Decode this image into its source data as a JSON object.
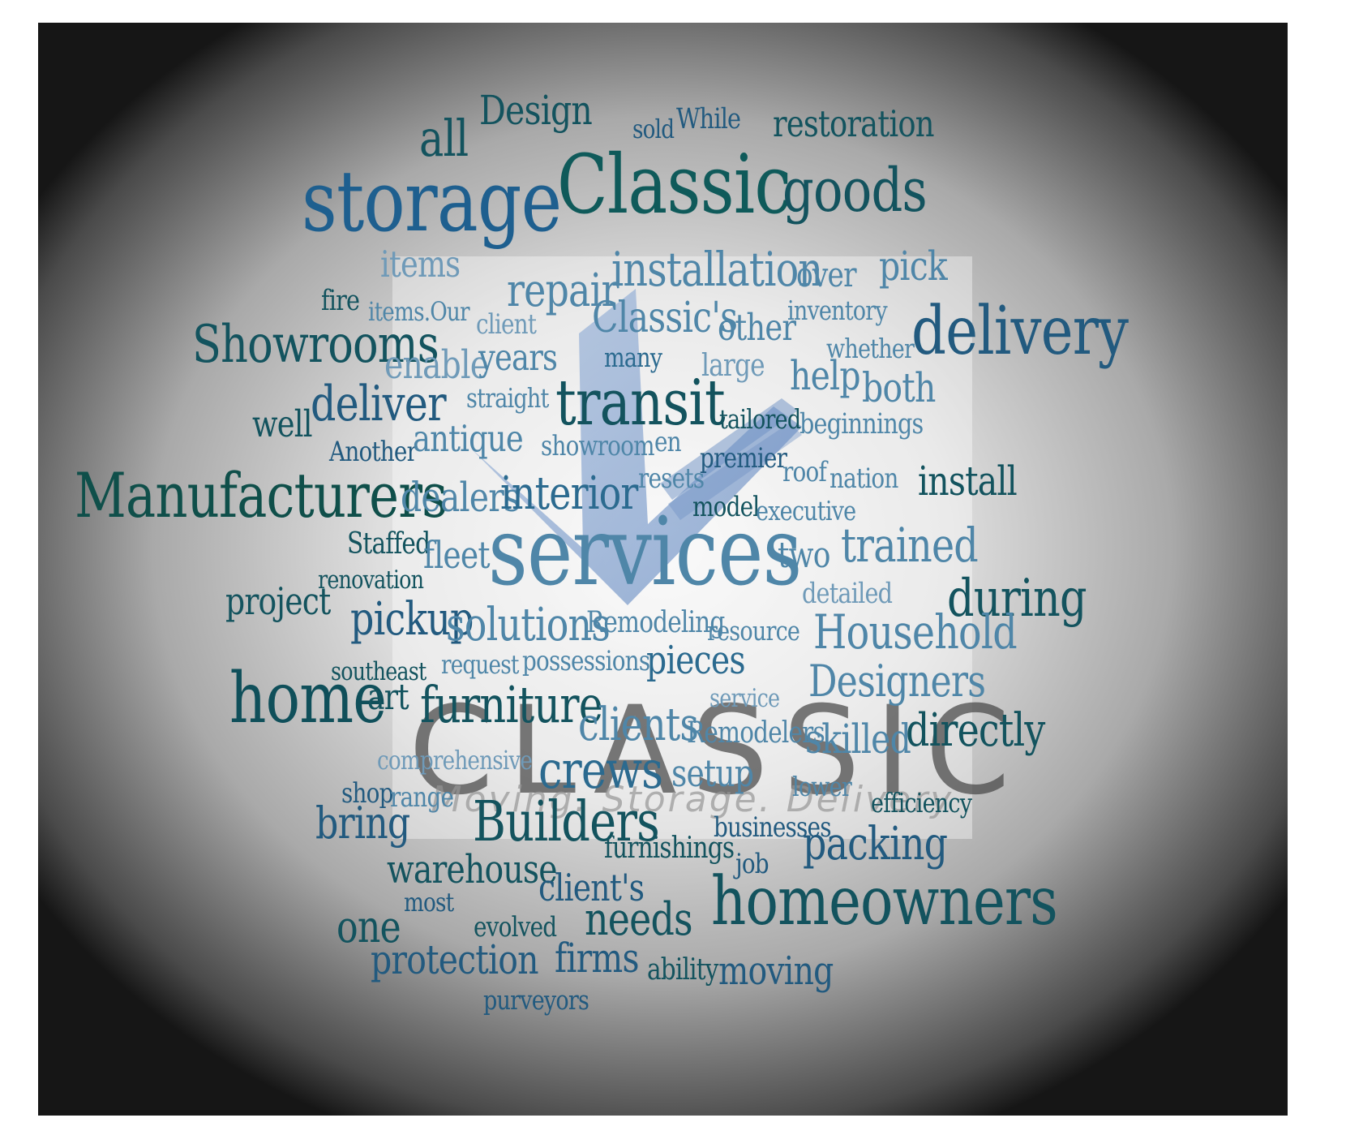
{
  "logo": {
    "name": "CLASSIC",
    "tagline": "Moving. Storage. Delivery"
  },
  "words": [
    {
      "text": "Design",
      "color": "#13535e"
    },
    {
      "text": "sold",
      "color": "#225a7f"
    },
    {
      "text": "While",
      "color": "#225a7f"
    },
    {
      "text": "restoration",
      "color": "#13535e"
    },
    {
      "text": "all",
      "color": "#13535e"
    },
    {
      "text": "storage",
      "color": "#1e5f8f"
    },
    {
      "text": "Classic",
      "color": "#0f5a5a"
    },
    {
      "text": "goods",
      "color": "#13535e"
    },
    {
      "text": "items",
      "color": "#6f9ab8"
    },
    {
      "text": "installation",
      "color": "#4f86a8"
    },
    {
      "text": "over",
      "color": "#4f86a8"
    },
    {
      "text": "pick",
      "color": "#4f86a8"
    },
    {
      "text": "fire",
      "color": "#13535e"
    },
    {
      "text": "items.Our",
      "color": "#4f86a8"
    },
    {
      "text": "repair",
      "color": "#4f86a8"
    },
    {
      "text": "client",
      "color": "#6f9ab8"
    },
    {
      "text": "Classic's",
      "color": "#4f86a8"
    },
    {
      "text": "other",
      "color": "#4f86a8"
    },
    {
      "text": "inventory",
      "color": "#4f86a8"
    },
    {
      "text": "delivery",
      "color": "#225a7f"
    },
    {
      "text": "Showrooms",
      "color": "#13535e"
    },
    {
      "text": "enable",
      "color": "#6f9ab8"
    },
    {
      "text": "years",
      "color": "#4f86a8"
    },
    {
      "text": "many",
      "color": "#2b6a8f"
    },
    {
      "text": "large",
      "color": "#6f9ab8"
    },
    {
      "text": "whether",
      "color": "#4f86a8"
    },
    {
      "text": "help",
      "color": "#4f86a8"
    },
    {
      "text": "both",
      "color": "#4f86a8"
    },
    {
      "text": "well",
      "color": "#13535e"
    },
    {
      "text": "deliver",
      "color": "#225a7f"
    },
    {
      "text": "straight",
      "color": "#4f86a8"
    },
    {
      "text": "transit",
      "color": "#13535e"
    },
    {
      "text": "tailored",
      "color": "#13535e"
    },
    {
      "text": "beginnings",
      "color": "#4f86a8"
    },
    {
      "text": "Another",
      "color": "#225a7f"
    },
    {
      "text": "antique",
      "color": "#4f86a8"
    },
    {
      "text": "showroom",
      "color": "#4f86a8"
    },
    {
      "text": "en",
      "color": "#4f86a8"
    },
    {
      "text": "premier",
      "color": "#225a7f"
    },
    {
      "text": "Manufacturers",
      "color": "#0f4f4a"
    },
    {
      "text": "dealers",
      "color": "#4f86a8"
    },
    {
      "text": "interior",
      "color": "#2b6a8f"
    },
    {
      "text": "resets",
      "color": "#4f86a8"
    },
    {
      "text": "roof",
      "color": "#4f86a8"
    },
    {
      "text": "nation",
      "color": "#4f86a8"
    },
    {
      "text": "install",
      "color": "#13535e"
    },
    {
      "text": "model",
      "color": "#13535e"
    },
    {
      "text": "executive",
      "color": "#4f86a8"
    },
    {
      "text": "Staffed",
      "color": "#13535e"
    },
    {
      "text": "fleet",
      "color": "#4f86a8"
    },
    {
      "text": "services",
      "color": "#4f86a8"
    },
    {
      "text": "two",
      "color": "#4f86a8"
    },
    {
      "text": "trained",
      "color": "#4f86a8"
    },
    {
      "text": "renovation",
      "color": "#13535e"
    },
    {
      "text": "project",
      "color": "#13535e"
    },
    {
      "text": "detailed",
      "color": "#6f9ab8"
    },
    {
      "text": "during",
      "color": "#13535e"
    },
    {
      "text": "pickup",
      "color": "#225a7f"
    },
    {
      "text": "solutions",
      "color": "#4f86a8"
    },
    {
      "text": "Remodeling",
      "color": "#4f86a8"
    },
    {
      "text": "resource",
      "color": "#4f86a8"
    },
    {
      "text": "Household",
      "color": "#4f86a8"
    },
    {
      "text": "southeast",
      "color": "#13535e"
    },
    {
      "text": "request",
      "color": "#4f86a8"
    },
    {
      "text": "possessions",
      "color": "#4f86a8"
    },
    {
      "text": "pieces",
      "color": "#2b6a8f"
    },
    {
      "text": "Designers",
      "color": "#4f86a8"
    },
    {
      "text": "home",
      "color": "#0f4f5a"
    },
    {
      "text": "art",
      "color": "#13535e"
    },
    {
      "text": "furniture",
      "color": "#13535e"
    },
    {
      "text": "service",
      "color": "#6f9ab8"
    },
    {
      "text": "clients",
      "color": "#4f86a8"
    },
    {
      "text": "Remodelers",
      "color": "#4f86a8"
    },
    {
      "text": "skilled",
      "color": "#4f86a8"
    },
    {
      "text": "directly",
      "color": "#13535e"
    },
    {
      "text": "comprehensive",
      "color": "#6f9ab8"
    },
    {
      "text": "crews",
      "color": "#2b6a8f"
    },
    {
      "text": "setup",
      "color": "#4f86a8"
    },
    {
      "text": "lower",
      "color": "#4f86a8"
    },
    {
      "text": "shop",
      "color": "#225a7f"
    },
    {
      "text": "range",
      "color": "#4f86a8"
    },
    {
      "text": "efficiency",
      "color": "#13535e"
    },
    {
      "text": "bring",
      "color": "#225a7f"
    },
    {
      "text": "Builders",
      "color": "#13535e"
    },
    {
      "text": "businesses",
      "color": "#225a7f"
    },
    {
      "text": "furnishings",
      "color": "#13535e"
    },
    {
      "text": "packing",
      "color": "#225a7f"
    },
    {
      "text": "warehouse",
      "color": "#13535e"
    },
    {
      "text": "job",
      "color": "#225a7f"
    },
    {
      "text": "client's",
      "color": "#225a7f"
    },
    {
      "text": "homeowners",
      "color": "#13535e"
    },
    {
      "text": "most",
      "color": "#225a7f"
    },
    {
      "text": "one",
      "color": "#13535e"
    },
    {
      "text": "evolved",
      "color": "#13535e"
    },
    {
      "text": "needs",
      "color": "#13535e"
    },
    {
      "text": "protection",
      "color": "#225a7f"
    },
    {
      "text": "firms",
      "color": "#225a7f"
    },
    {
      "text": "ability",
      "color": "#13535e"
    },
    {
      "text": "moving",
      "color": "#225a7f"
    },
    {
      "text": "purveyors",
      "color": "#225a7f"
    }
  ]
}
